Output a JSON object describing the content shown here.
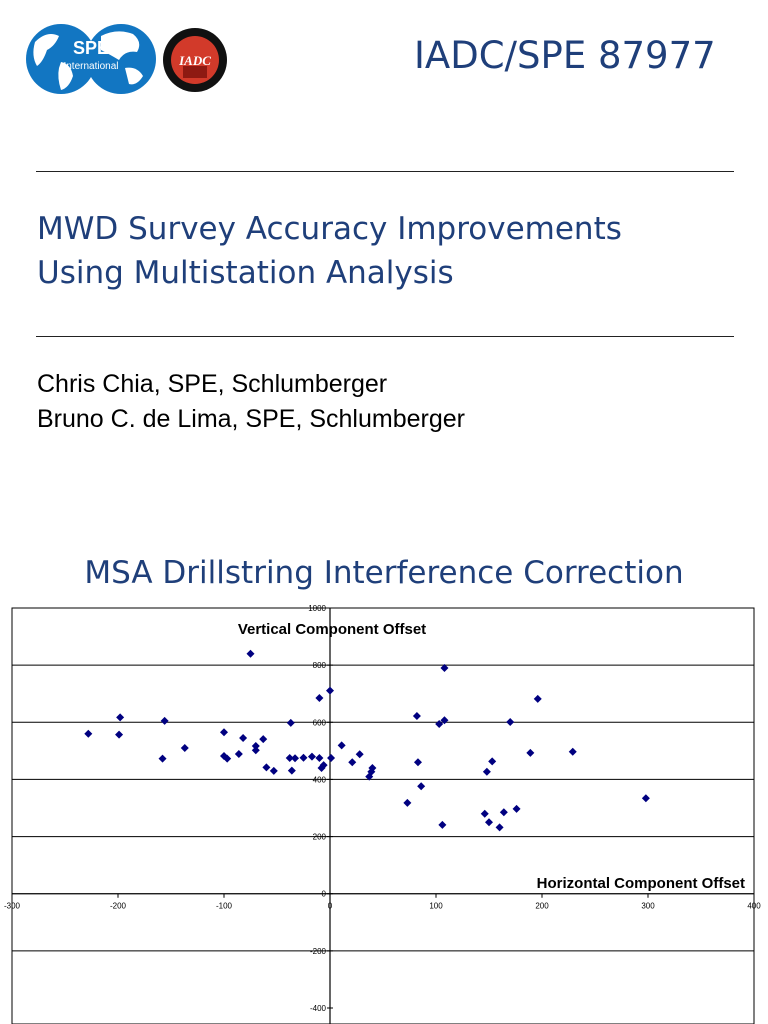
{
  "header": {
    "paper_code": "IADC/SPE 87977",
    "logos": {
      "spe_text": "SPE",
      "spe_sub": "International",
      "iadc_text": "IADC"
    }
  },
  "paper": {
    "title_line1": "MWD Survey Accuracy Improvements",
    "title_line2": "Using Multistation Analysis",
    "author1": "Chris Chia, SPE, Schlumberger",
    "author2": "Bruno C. de Lima, SPE, Schlumberger"
  },
  "section_title": "MSA Drillstring Interference Correction",
  "colors": {
    "accent_blue": "#1f3f7a",
    "marker": "#000080"
  },
  "chart_data": {
    "type": "scatter",
    "title": "Vertical Component Offset",
    "xlabel": "Horizontal Component Offset",
    "ylabel": "",
    "xlim": [
      -300,
      400
    ],
    "ylim": [
      -400,
      1000
    ],
    "x_ticks": [
      -300,
      -200,
      -100,
      0,
      100,
      200,
      300,
      400
    ],
    "y_ticks": [
      1000,
      800,
      600,
      400,
      200,
      0,
      -200,
      -400
    ],
    "grid": "horizontal",
    "marker": "diamond",
    "series": [
      {
        "points": [
          [
            -228,
            560
          ],
          [
            -198,
            617
          ],
          [
            -199,
            557
          ],
          [
            -156,
            605
          ],
          [
            -158,
            473
          ],
          [
            -137,
            510
          ],
          [
            -100,
            565
          ],
          [
            -100,
            482
          ],
          [
            -97,
            473
          ],
          [
            -86,
            489
          ],
          [
            -82,
            545
          ],
          [
            -75,
            840
          ],
          [
            -70,
            517
          ],
          [
            -70,
            502
          ],
          [
            -63,
            541
          ],
          [
            -60,
            442
          ],
          [
            -53,
            430
          ],
          [
            -37,
            598
          ],
          [
            -38,
            475
          ],
          [
            -36,
            431
          ],
          [
            -33,
            474
          ],
          [
            -25,
            476
          ],
          [
            -17,
            480
          ],
          [
            -10,
            685
          ],
          [
            -10,
            475
          ],
          [
            -8,
            440
          ],
          [
            -6,
            450
          ],
          [
            0,
            711
          ],
          [
            1,
            475
          ],
          [
            11,
            519
          ],
          [
            21,
            460
          ],
          [
            28,
            488
          ],
          [
            37,
            410
          ],
          [
            39,
            427
          ],
          [
            40,
            440
          ],
          [
            73,
            318
          ],
          [
            82,
            622
          ],
          [
            83,
            460
          ],
          [
            86,
            376
          ],
          [
            103,
            594
          ],
          [
            106,
            241
          ],
          [
            108,
            607
          ],
          [
            108,
            790
          ],
          [
            146,
            280
          ],
          [
            148,
            427
          ],
          [
            150,
            250
          ],
          [
            153,
            463
          ],
          [
            160,
            232
          ],
          [
            164,
            285
          ],
          [
            170,
            601
          ],
          [
            176,
            297
          ],
          [
            189,
            493
          ],
          [
            196,
            682
          ],
          [
            229,
            497
          ],
          [
            298,
            334
          ]
        ]
      }
    ]
  }
}
